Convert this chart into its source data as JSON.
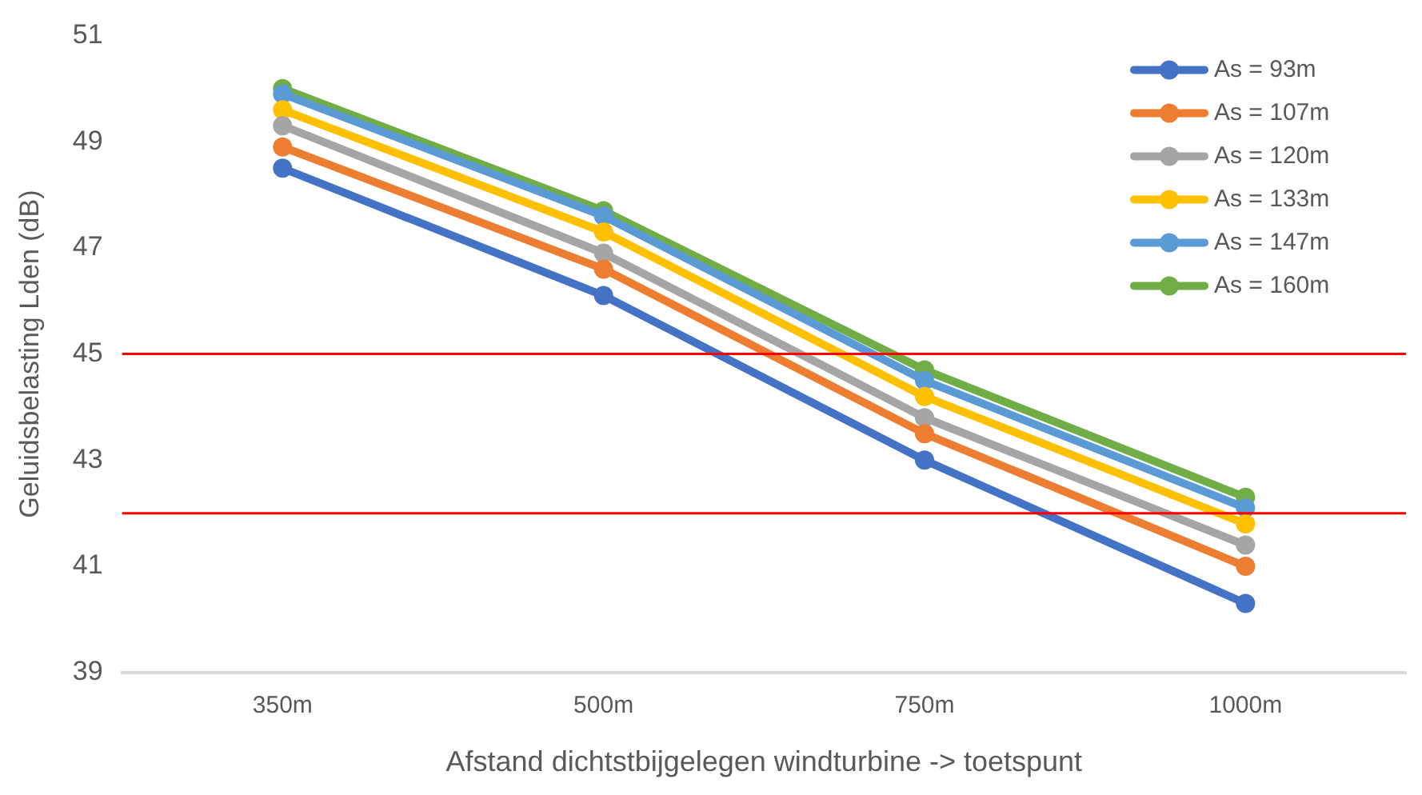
{
  "chart_data": {
    "type": "line",
    "xlabel": "Afstand dichtstbijgelegen windturbine -> toetspunt",
    "ylabel": "Geluidsbelasting Lden (dB)",
    "categories": [
      "350m",
      "500m",
      "750m",
      "1000m"
    ],
    "series": [
      {
        "name": "As = 93m",
        "color": "#4472c4",
        "values": [
          48.5,
          46.1,
          43.0,
          40.3
        ]
      },
      {
        "name": "As = 107m",
        "color": "#ed7d31",
        "values": [
          48.9,
          46.6,
          43.5,
          41.0
        ]
      },
      {
        "name": "As = 120m",
        "color": "#a5a5a5",
        "values": [
          49.3,
          46.9,
          43.8,
          41.4
        ]
      },
      {
        "name": "As = 133m",
        "color": "#ffc000",
        "values": [
          49.6,
          47.3,
          44.2,
          41.8
        ]
      },
      {
        "name": "As = 147m",
        "color": "#5b9bd5",
        "values": [
          49.9,
          47.6,
          44.5,
          42.1
        ]
      },
      {
        "name": "As = 160m",
        "color": "#70ad47",
        "values": [
          50.0,
          47.7,
          44.7,
          42.3
        ]
      }
    ],
    "ylim": [
      39,
      51
    ],
    "yticks": [
      39,
      41,
      43,
      45,
      47,
      49,
      51
    ],
    "grid": false,
    "legend": "top right",
    "marker": "circle",
    "line_style": "solid",
    "ref_lines": [
      {
        "axis": "y",
        "value": 45,
        "color": "#ff0000"
      },
      {
        "axis": "y",
        "value": 42,
        "color": "#ff0000"
      }
    ]
  }
}
